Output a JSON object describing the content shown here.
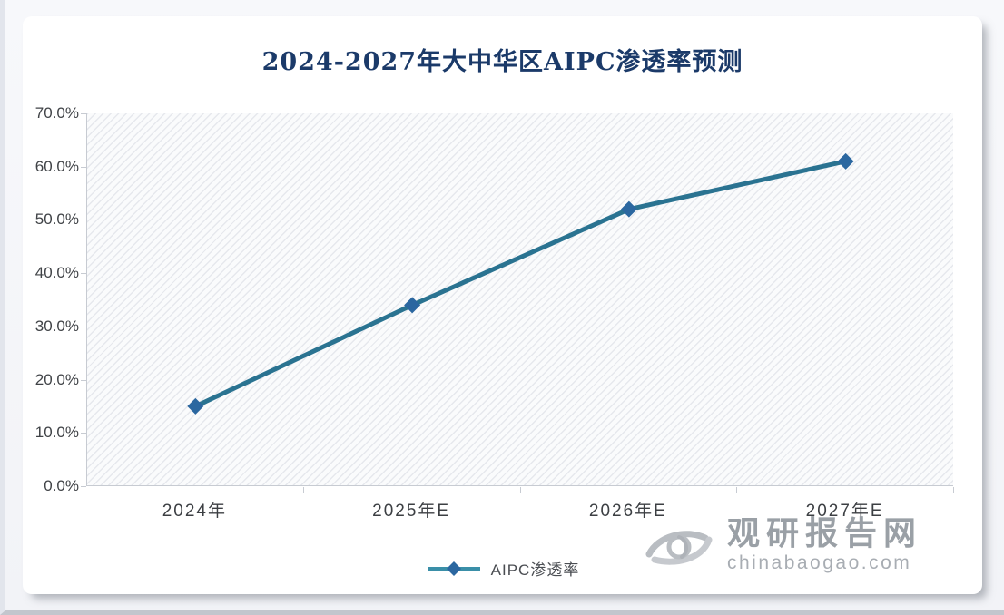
{
  "title": "2024-2027年大中华区AIPC渗透率预测",
  "chart_data": {
    "type": "line",
    "title": "2024-2027年大中华区AIPC渗透率预测",
    "categories": [
      "2024年",
      "2025年E",
      "2026年E",
      "2027年E"
    ],
    "series": [
      {
        "name": "AIPC渗透率",
        "values": [
          15,
          34,
          52,
          61
        ]
      }
    ],
    "unit": "%",
    "xlabel": "",
    "ylabel": "",
    "ylim": [
      0,
      70
    ],
    "y_tick_step": 10,
    "y_tick_labels": [
      "0.0%",
      "10.0%",
      "20.0%",
      "30.0%",
      "40.0%",
      "50.0%",
      "60.0%",
      "70.0%"
    ],
    "grid": false,
    "plot_background": "diagonal-hatch",
    "legend_position": "bottom",
    "marker_shape": "diamond",
    "colors": {
      "line": "#2a7391",
      "marker": "#2b67a0",
      "legend_line": "#3a8fa8",
      "title_text": "#1b3a69",
      "axis_text": "#404347",
      "axis_line": "#c7cbd2"
    }
  },
  "legend": {
    "items": [
      {
        "label": "AIPC渗透率",
        "marker": "diamond-line"
      }
    ]
  },
  "watermark": {
    "logo": "swirl-logo",
    "name": "观研报告网",
    "domain": "chinabaogao.com"
  }
}
